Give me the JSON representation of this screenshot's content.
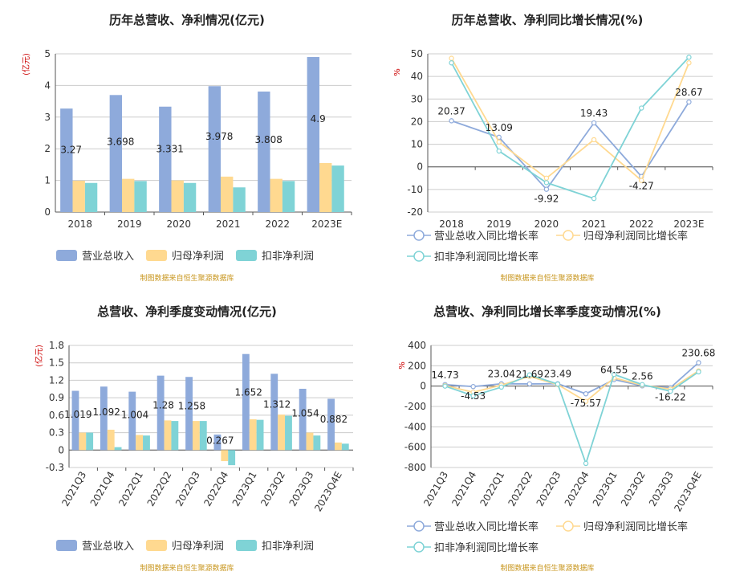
{
  "source_note": "制图数据来自恒生聚源数据库",
  "colors": {
    "revenue": "#8eaadb",
    "net_profit": "#ffd990",
    "deducted_profit": "#7fd3d6",
    "axis": "#555555",
    "grid": "#cccccc",
    "unit": "#cc0000",
    "note": "#c8961e"
  },
  "chart_data": [
    {
      "type": "bar",
      "title": "历年总营收、净利情况(亿元)",
      "ylabel": "(亿元)",
      "ylim": [
        0,
        5
      ],
      "yticks": [
        "0",
        "1",
        "2",
        "3",
        "4",
        "5"
      ],
      "categories": [
        "2018",
        "2019",
        "2020",
        "2021",
        "2022",
        "2023E"
      ],
      "series": [
        {
          "name": "营业总收入",
          "values": [
            3.27,
            3.698,
            3.331,
            3.978,
            3.808,
            4.9
          ],
          "labels": [
            "3.27",
            "3.698",
            "3.331",
            "3.978",
            "3.808",
            "4.9"
          ]
        },
        {
          "name": "归母净利润",
          "values": [
            0.99,
            1.05,
            1.0,
            1.12,
            1.05,
            1.55
          ]
        },
        {
          "name": "扣非净利润",
          "values": [
            0.92,
            0.98,
            0.92,
            0.78,
            0.98,
            1.47
          ]
        }
      ]
    },
    {
      "type": "line",
      "title": "历年总营收、净利同比增长情况(%)",
      "ylabel": "%",
      "ylim": [
        -20,
        50
      ],
      "yticks": [
        "50",
        "40",
        "30",
        "20",
        "10",
        "0",
        "-10",
        "-20"
      ],
      "categories": [
        "2018",
        "2019",
        "2020",
        "2021",
        "2022",
        "2023E"
      ],
      "series": [
        {
          "name": "营业总收入同比增长率",
          "values": [
            20.37,
            13.09,
            -9.92,
            19.43,
            -4.27,
            28.67
          ],
          "labels": [
            "20.37",
            "13.09",
            "-9.92",
            "19.43",
            "-4.27",
            "28.67"
          ]
        },
        {
          "name": "归母净利润同比增长率",
          "values": [
            48.0,
            11.0,
            -5.0,
            12.0,
            -6.0,
            46.0
          ]
        },
        {
          "name": "扣非净利润同比增长率",
          "values": [
            46.0,
            7.0,
            -7.0,
            -14.0,
            26.0,
            48.5
          ]
        }
      ]
    },
    {
      "type": "bar",
      "title": "总营收、净利季度变动情况(亿元)",
      "ylabel": "(亿元)",
      "ylim": [
        -0.3,
        1.8
      ],
      "yticks": [
        "1.8",
        "1.5",
        "1.2",
        "0.9",
        "0.6",
        "0.3",
        "0",
        "-0.3"
      ],
      "categories": [
        "2021Q3",
        "2021Q4",
        "2022Q1",
        "2022Q2",
        "2022Q3",
        "2022Q4",
        "2023Q1",
        "2023Q2",
        "2023Q3",
        "2023Q4E"
      ],
      "series": [
        {
          "name": "营业总收入",
          "values": [
            1.019,
            1.092,
            1.004,
            1.28,
            1.258,
            0.267,
            1.652,
            1.312,
            1.054,
            0.882
          ],
          "labels": [
            "1.019",
            "1.092",
            "1.004",
            "1.28",
            "1.258",
            "0.267",
            "1.652",
            "1.312",
            "1.054",
            "0.882"
          ]
        },
        {
          "name": "归母净利润",
          "values": [
            0.3,
            0.35,
            0.26,
            0.51,
            0.5,
            -0.19,
            0.53,
            0.61,
            0.3,
            0.13
          ]
        },
        {
          "name": "扣非净利润",
          "values": [
            0.3,
            0.05,
            0.25,
            0.5,
            0.5,
            -0.26,
            0.52,
            0.59,
            0.25,
            0.11
          ]
        }
      ]
    },
    {
      "type": "line",
      "title": "总营收、净利同比增长率季度变动情况(%)",
      "ylabel": "%",
      "ylim": [
        -800,
        400
      ],
      "yticks": [
        "400",
        "200",
        "0",
        "-200",
        "-400",
        "-600",
        "-800"
      ],
      "categories": [
        "2021Q3",
        "2021Q4",
        "2022Q1",
        "2022Q2",
        "2022Q3",
        "2022Q4",
        "2023Q1",
        "2023Q2",
        "2023Q3",
        "2023Q4E"
      ],
      "series": [
        {
          "name": "营业总收入同比增长率",
          "values": [
            14.73,
            -4.53,
            23.04,
            21.69,
            23.49,
            -75.57,
            64.55,
            2.56,
            -16.22,
            230.68
          ],
          "labels": [
            "14.73",
            "-4.53",
            "23.04",
            "21.69",
            "23.49",
            "-75.57",
            "64.55",
            "2.56",
            "-16.22",
            "230.68"
          ]
        },
        {
          "name": "归母净利润同比增长率",
          "values": [
            5,
            -60,
            10,
            95,
            15,
            -150,
            80,
            10,
            -30,
            150
          ]
        },
        {
          "name": "扣非净利润同比增长率",
          "values": [
            0,
            -95,
            -10,
            110,
            20,
            -760,
            115,
            15,
            -50,
            140
          ]
        }
      ]
    }
  ]
}
